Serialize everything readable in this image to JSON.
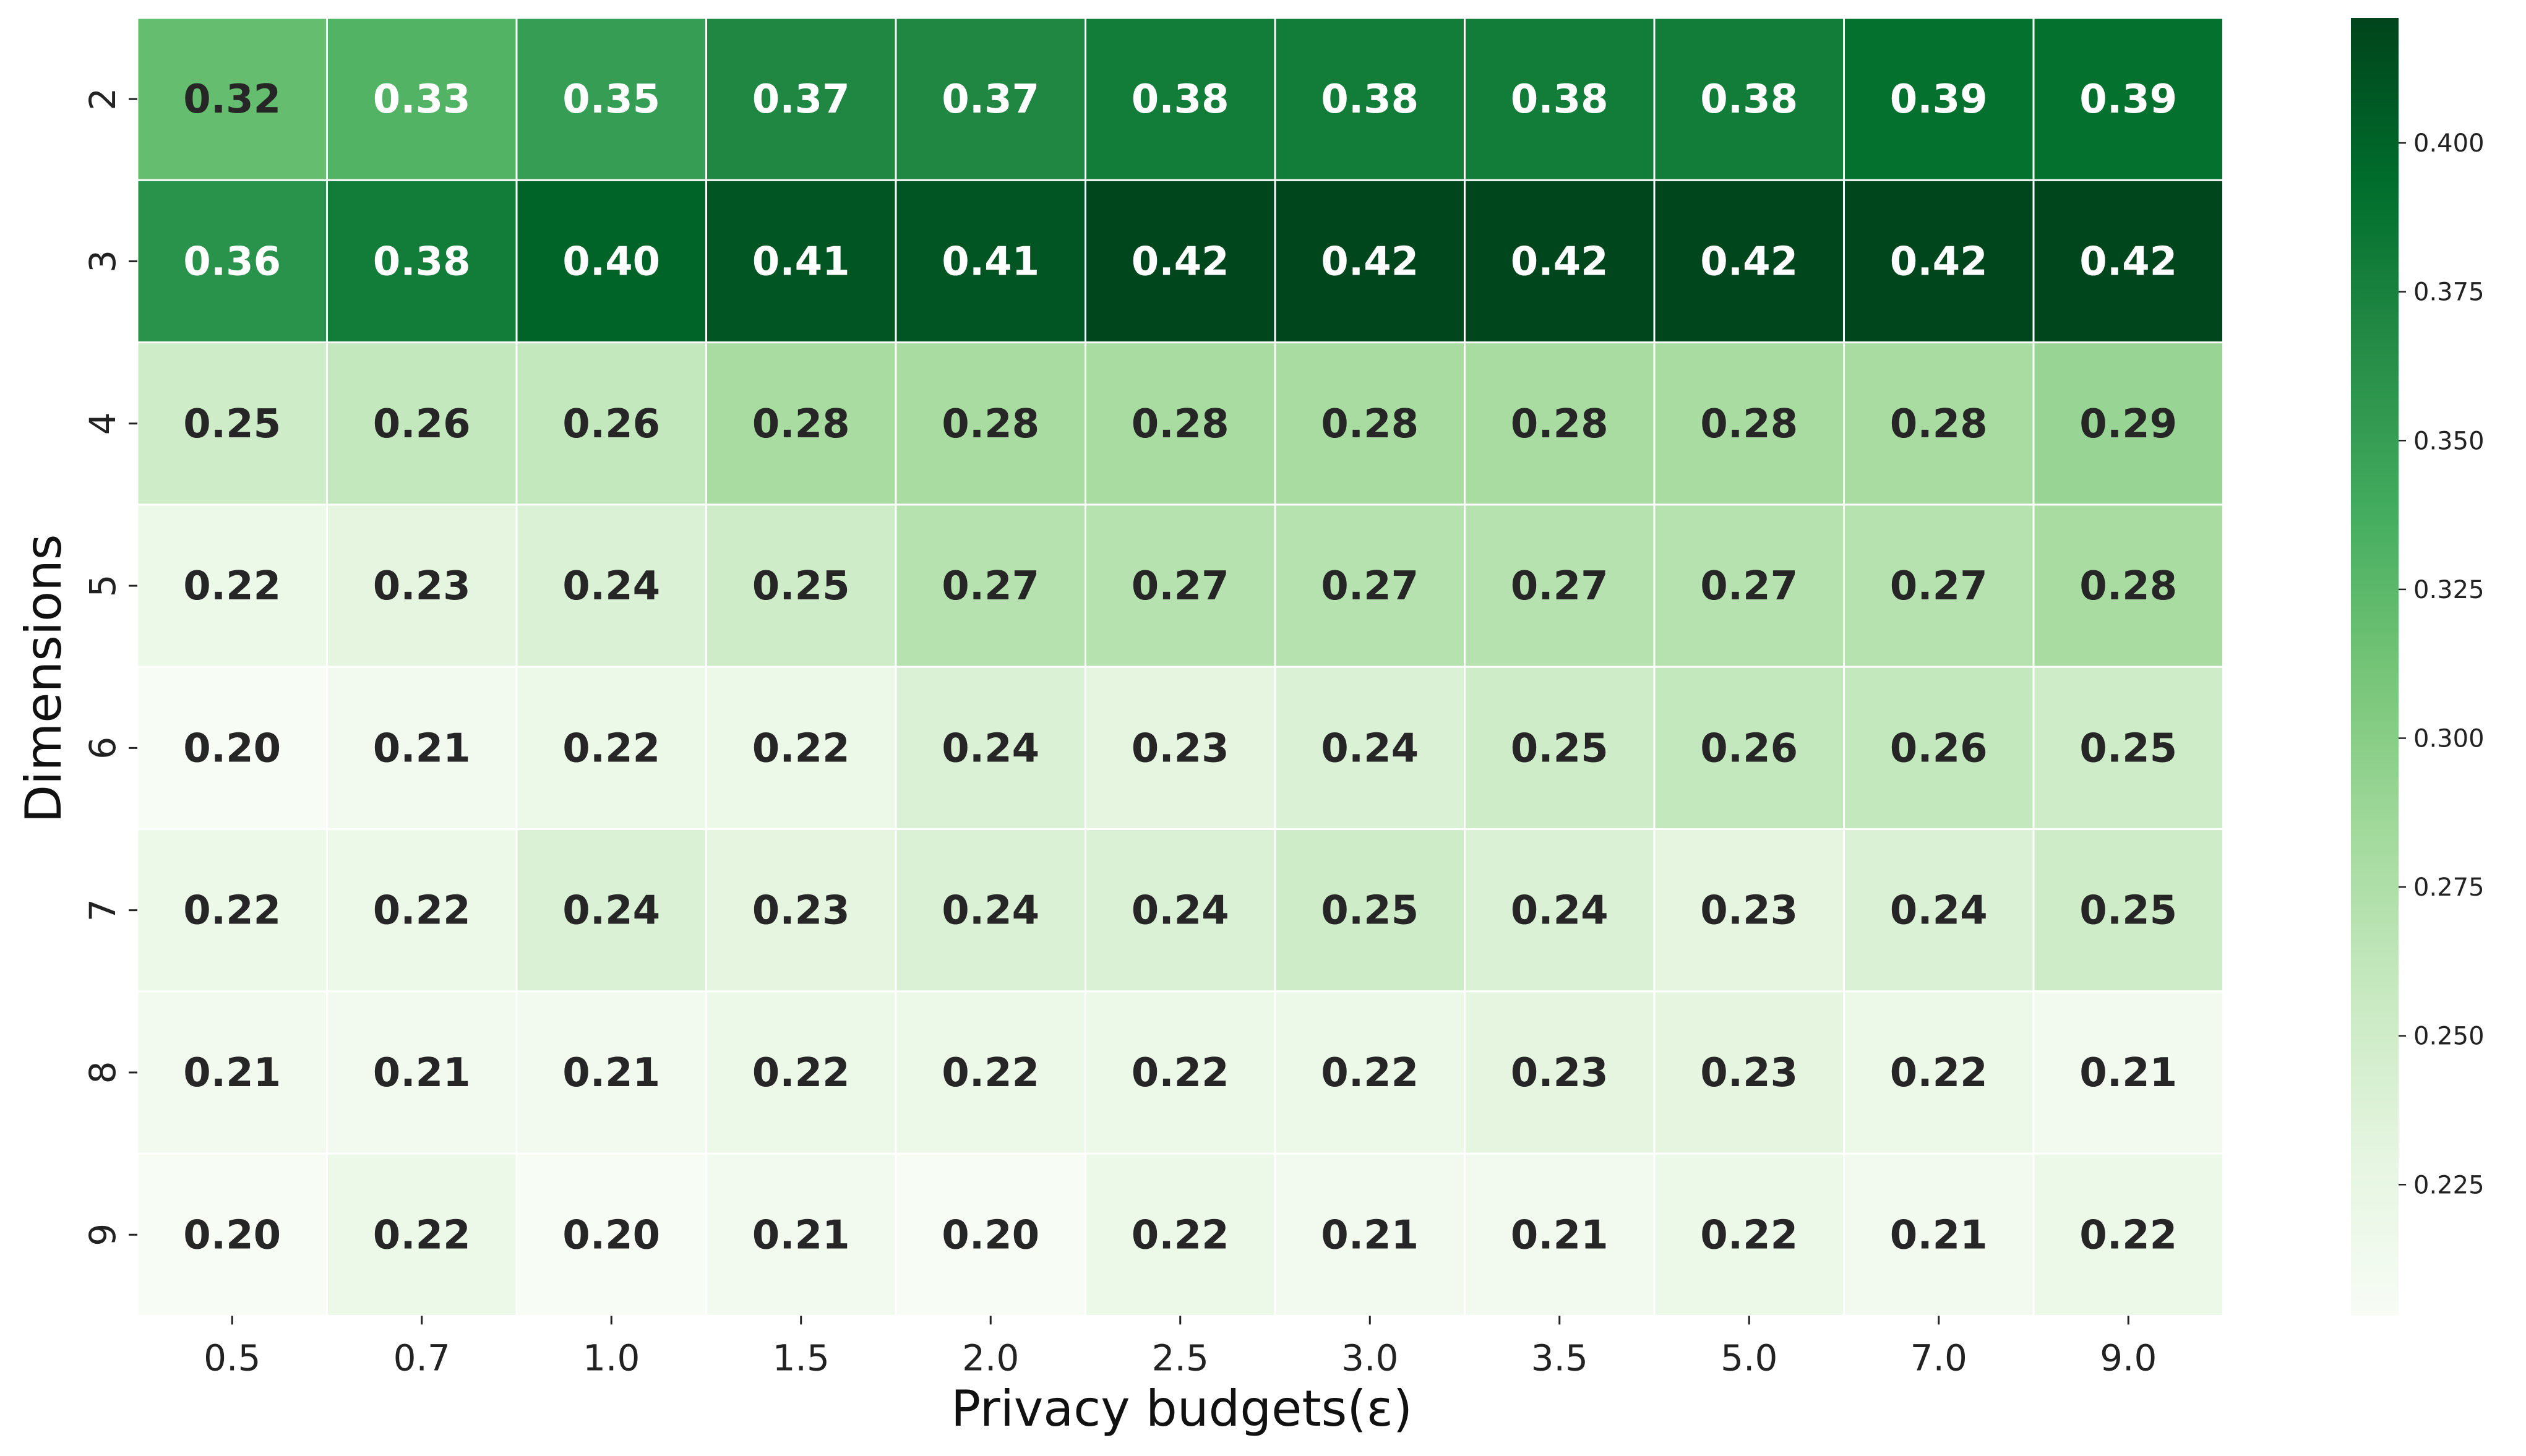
{
  "chart_data": {
    "type": "heatmap",
    "xlabel": "Privacy budgets(ε)",
    "ylabel": "Dimensions",
    "x_categories": [
      "0.5",
      "0.7",
      "1.0",
      "1.5",
      "2.0",
      "2.5",
      "3.0",
      "3.5",
      "5.0",
      "7.0",
      "9.0"
    ],
    "y_categories": [
      "2",
      "3",
      "4",
      "5",
      "6",
      "7",
      "8",
      "9"
    ],
    "values": [
      [
        0.32,
        0.33,
        0.35,
        0.37,
        0.37,
        0.38,
        0.38,
        0.38,
        0.38,
        0.39,
        0.39
      ],
      [
        0.36,
        0.38,
        0.4,
        0.41,
        0.41,
        0.42,
        0.42,
        0.42,
        0.42,
        0.42,
        0.42
      ],
      [
        0.25,
        0.26,
        0.26,
        0.28,
        0.28,
        0.28,
        0.28,
        0.28,
        0.28,
        0.28,
        0.29
      ],
      [
        0.22,
        0.23,
        0.24,
        0.25,
        0.27,
        0.27,
        0.27,
        0.27,
        0.27,
        0.27,
        0.28
      ],
      [
        0.2,
        0.21,
        0.22,
        0.22,
        0.24,
        0.23,
        0.24,
        0.25,
        0.26,
        0.26,
        0.25
      ],
      [
        0.22,
        0.22,
        0.24,
        0.23,
        0.24,
        0.24,
        0.25,
        0.24,
        0.23,
        0.24,
        0.25
      ],
      [
        0.21,
        0.21,
        0.21,
        0.22,
        0.22,
        0.22,
        0.22,
        0.23,
        0.23,
        0.22,
        0.21
      ],
      [
        0.2,
        0.22,
        0.2,
        0.21,
        0.2,
        0.22,
        0.21,
        0.21,
        0.22,
        0.21,
        0.22
      ]
    ],
    "value_format": "2 decimals",
    "colormap": "Greens",
    "colorbar": {
      "range": [
        0.203,
        0.421
      ],
      "ticks": [
        "0.225",
        "0.250",
        "0.275",
        "0.300",
        "0.325",
        "0.350",
        "0.375",
        "0.400"
      ],
      "tick_values": [
        0.225,
        0.25,
        0.275,
        0.3,
        0.325,
        0.35,
        0.375,
        0.4
      ]
    },
    "colors": {
      "low": "#f7fcf5",
      "high": "#00441b",
      "cell_border": "#ffffff",
      "dark_text": "#262626",
      "light_text": "#ffffff"
    }
  }
}
